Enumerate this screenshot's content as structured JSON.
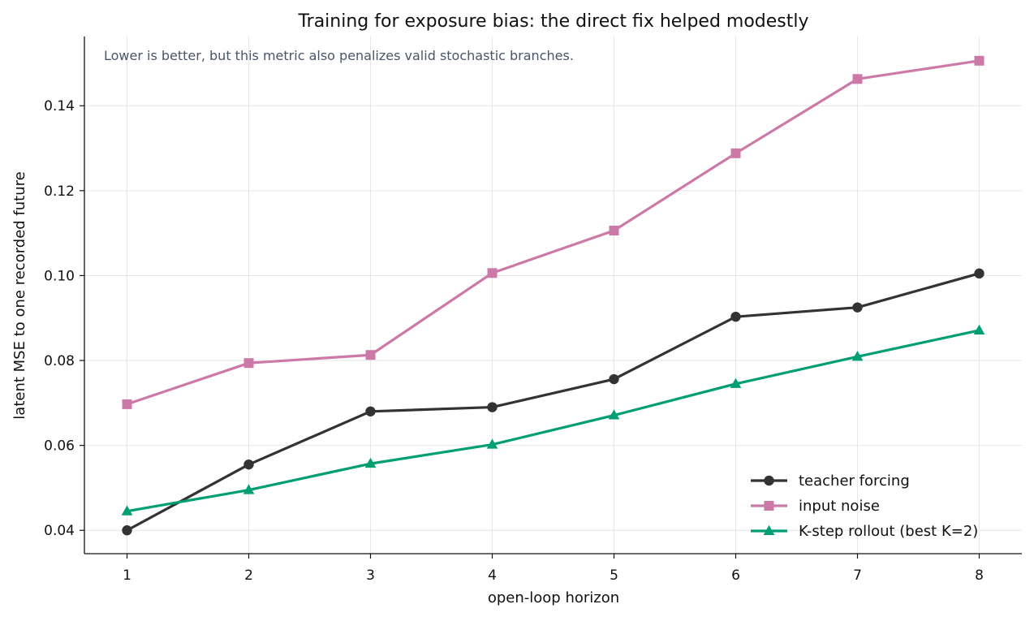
{
  "chart_data": {
    "type": "line",
    "title": "Training for exposure bias: the direct fix helped modestly",
    "annotation": "Lower is better, but this metric also penalizes valid stochastic branches.",
    "xlabel": "open-loop horizon",
    "ylabel": "latent MSE to one recorded future",
    "x": [
      1,
      2,
      3,
      4,
      5,
      6,
      7,
      8
    ],
    "x_ticks": [
      "1",
      "2",
      "3",
      "4",
      "5",
      "6",
      "7",
      "8"
    ],
    "y_ticks": [
      "0.04",
      "0.06",
      "0.08",
      "0.10",
      "0.12",
      "0.14"
    ],
    "xlim": [
      0.65,
      8.35
    ],
    "ylim": [
      0.0345,
      0.1563
    ],
    "grid": true,
    "legend_position": "lower-right",
    "series": [
      {
        "name": "teacher forcing",
        "color": "#333333",
        "marker": "circle",
        "values": [
          0.04,
          0.0555,
          0.068,
          0.069,
          0.0756,
          0.0903,
          0.0925,
          0.1005
        ]
      },
      {
        "name": "input noise",
        "color": "#cc79a7",
        "marker": "square",
        "values": [
          0.0697,
          0.0794,
          0.0813,
          0.1006,
          0.1106,
          0.1288,
          0.1463,
          0.1506
        ]
      },
      {
        "name": "K-step rollout (best K=2)",
        "color": "#009e73",
        "marker": "triangle",
        "values": [
          0.0445,
          0.0495,
          0.0557,
          0.0602,
          0.0671,
          0.0745,
          0.0809,
          0.0871
        ]
      }
    ]
  }
}
